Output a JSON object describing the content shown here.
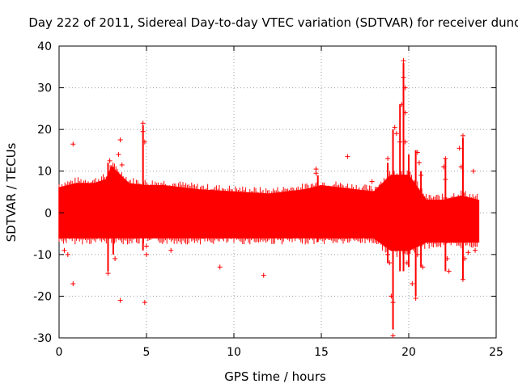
{
  "chart_data": {
    "type": "scatter",
    "title": "Day 222 of 2011, Sidereal Day-to-day VTEC variation (SDTVAR) for receiver dund",
    "xlabel": "GPS time / hours",
    "ylabel": "SDTVAR / TECUs",
    "xlim": [
      0,
      25
    ],
    "ylim": [
      -30,
      40
    ],
    "xticks": [
      "0",
      "5",
      "10",
      "15",
      "20",
      "25"
    ],
    "yticks": [
      "-30",
      "-20",
      "-10",
      "0",
      "10",
      "20",
      "30",
      "40"
    ],
    "grid": true,
    "marker": "+",
    "color": "#ff0000",
    "series": [
      {
        "name": "SDTVAR",
        "band": [
          {
            "x": 0.0,
            "low": -6,
            "high": 6
          },
          {
            "x": 1.0,
            "low": -6,
            "high": 7
          },
          {
            "x": 2.0,
            "low": -6,
            "high": 7
          },
          {
            "x": 2.7,
            "low": -6,
            "high": 8
          },
          {
            "x": 3.0,
            "low": -6,
            "high": 11
          },
          {
            "x": 3.5,
            "low": -6,
            "high": 9
          },
          {
            "x": 4.0,
            "low": -6,
            "high": 7
          },
          {
            "x": 5.0,
            "low": -6,
            "high": 6.5
          },
          {
            "x": 6.0,
            "low": -6,
            "high": 6.5
          },
          {
            "x": 8.0,
            "low": -6,
            "high": 5.5
          },
          {
            "x": 10.0,
            "low": -6,
            "high": 5
          },
          {
            "x": 12.0,
            "low": -6,
            "high": 4.5
          },
          {
            "x": 14.0,
            "low": -6,
            "high": 5.5
          },
          {
            "x": 15.0,
            "low": -6,
            "high": 6.5
          },
          {
            "x": 16.0,
            "low": -6,
            "high": 6
          },
          {
            "x": 17.0,
            "low": -6,
            "high": 5.5
          },
          {
            "x": 18.0,
            "low": -6,
            "high": 5
          },
          {
            "x": 19.0,
            "low": -9,
            "high": 9
          },
          {
            "x": 20.0,
            "low": -9,
            "high": 9
          },
          {
            "x": 21.0,
            "low": -7,
            "high": 3
          },
          {
            "x": 22.0,
            "low": -7,
            "high": 3
          },
          {
            "x": 23.0,
            "low": -7,
            "high": 4
          },
          {
            "x": 24.0,
            "low": -7,
            "high": 3
          }
        ],
        "outliers": [
          {
            "x": 0.8,
            "y": 16.5
          },
          {
            "x": 0.8,
            "y": -17
          },
          {
            "x": 0.5,
            "y": -10
          },
          {
            "x": 0.3,
            "y": -9
          },
          {
            "x": 2.9,
            "y": 12.5
          },
          {
            "x": 2.8,
            "y": -14.5
          },
          {
            "x": 3.5,
            "y": 17.5
          },
          {
            "x": 3.4,
            "y": 14
          },
          {
            "x": 3.5,
            "y": -21
          },
          {
            "x": 3.6,
            "y": 11.5
          },
          {
            "x": 3.2,
            "y": -11
          },
          {
            "x": 4.8,
            "y": 21.5
          },
          {
            "x": 4.8,
            "y": 19.5
          },
          {
            "x": 4.9,
            "y": 17
          },
          {
            "x": 4.9,
            "y": -21.5
          },
          {
            "x": 5.0,
            "y": -8
          },
          {
            "x": 5.0,
            "y": -10
          },
          {
            "x": 6.4,
            "y": -9
          },
          {
            "x": 9.2,
            "y": -13
          },
          {
            "x": 11.7,
            "y": -15
          },
          {
            "x": 14.7,
            "y": 10.5
          },
          {
            "x": 14.7,
            "y": 9.5
          },
          {
            "x": 16.5,
            "y": 13.5
          },
          {
            "x": 17.9,
            "y": 7.5
          },
          {
            "x": 18.3,
            "y": 6
          },
          {
            "x": 18.4,
            "y": -6
          },
          {
            "x": 18.5,
            "y": 0
          },
          {
            "x": 18.8,
            "y": 13
          },
          {
            "x": 18.8,
            "y": -10
          },
          {
            "x": 18.9,
            "y": -12
          },
          {
            "x": 19.0,
            "y": -20
          },
          {
            "x": 19.1,
            "y": -21.5
          },
          {
            "x": 19.1,
            "y": -29.5
          },
          {
            "x": 19.2,
            "y": 20.5
          },
          {
            "x": 19.3,
            "y": 19
          },
          {
            "x": 19.5,
            "y": 17
          },
          {
            "x": 19.6,
            "y": 26
          },
          {
            "x": 19.7,
            "y": 36.5
          },
          {
            "x": 19.7,
            "y": 32.5
          },
          {
            "x": 19.8,
            "y": 30
          },
          {
            "x": 19.8,
            "y": 24
          },
          {
            "x": 19.8,
            "y": 17
          },
          {
            "x": 19.9,
            "y": -12
          },
          {
            "x": 20.2,
            "y": -17
          },
          {
            "x": 20.4,
            "y": -20.5
          },
          {
            "x": 20.5,
            "y": 14.5
          },
          {
            "x": 20.6,
            "y": 12
          },
          {
            "x": 20.7,
            "y": 9
          },
          {
            "x": 20.8,
            "y": -13
          },
          {
            "x": 20.5,
            "y": -10
          },
          {
            "x": 22.1,
            "y": 13
          },
          {
            "x": 22.0,
            "y": 11
          },
          {
            "x": 22.1,
            "y": 8
          },
          {
            "x": 22.2,
            "y": -11
          },
          {
            "x": 22.3,
            "y": -14
          },
          {
            "x": 22.9,
            "y": 15.5
          },
          {
            "x": 23.1,
            "y": 18.5
          },
          {
            "x": 23.0,
            "y": 11
          },
          {
            "x": 23.2,
            "y": -11
          },
          {
            "x": 23.1,
            "y": -16
          },
          {
            "x": 23.4,
            "y": -9.5
          },
          {
            "x": 23.7,
            "y": 10
          },
          {
            "x": 23.8,
            "y": -9
          }
        ],
        "spikes": [
          {
            "x": 2.8,
            "low": -14,
            "high": 12
          },
          {
            "x": 3.1,
            "low": -10,
            "high": 11
          },
          {
            "x": 4.8,
            "low": -9,
            "high": 21
          },
          {
            "x": 14.8,
            "low": -7,
            "high": 9
          },
          {
            "x": 18.8,
            "low": -12,
            "high": 12
          },
          {
            "x": 19.1,
            "low": -28,
            "high": 20
          },
          {
            "x": 19.5,
            "low": -14,
            "high": 26
          },
          {
            "x": 19.7,
            "low": -14,
            "high": 36
          },
          {
            "x": 20.0,
            "low": -13,
            "high": 14
          },
          {
            "x": 20.4,
            "low": -20,
            "high": 15
          },
          {
            "x": 20.7,
            "low": -13,
            "high": 10
          },
          {
            "x": 22.1,
            "low": -14,
            "high": 13
          },
          {
            "x": 23.1,
            "low": -16,
            "high": 18
          }
        ]
      }
    ]
  }
}
